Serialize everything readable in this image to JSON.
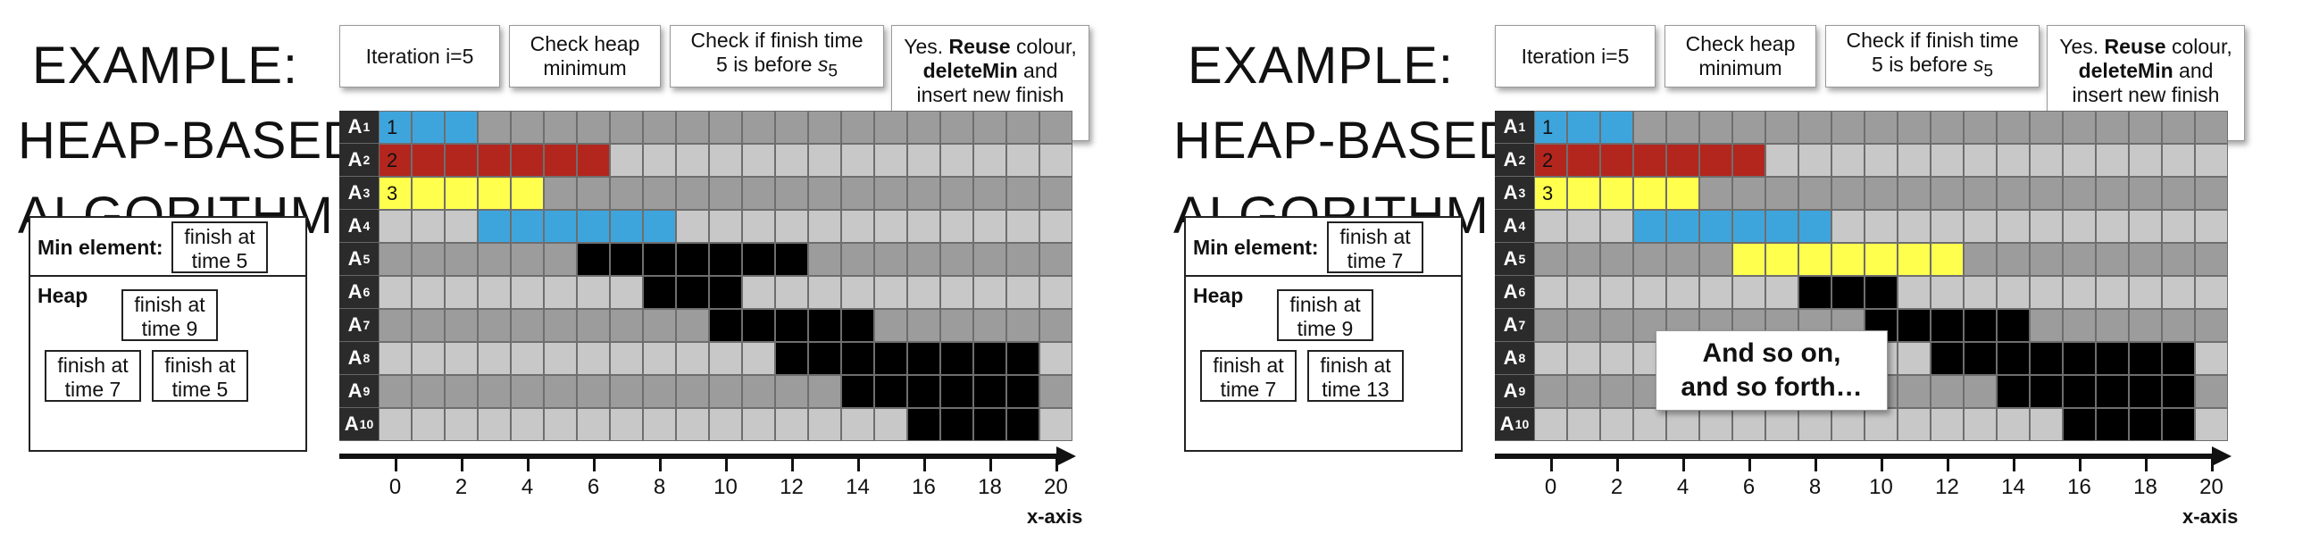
{
  "colors": {
    "blue": "#3ea5dc",
    "red": "#b3261e",
    "yellow": "#ffff4d",
    "black": "#000000",
    "dark_gray": "#9c9c9c",
    "light_gray": "#c8c8c8"
  },
  "x_axis": {
    "label": "x-axis",
    "ticks": [
      "0",
      "2",
      "4",
      "6",
      "8",
      "10",
      "12",
      "14",
      "16",
      "18",
      "20"
    ],
    "columns": 21
  },
  "panels": [
    {
      "title": [
        "EXAMPLE:",
        "HEAP-BASED",
        "ALGORITHM"
      ],
      "min_label": "Min element:",
      "min_value": [
        "finish at",
        "time 5"
      ],
      "heap_label": "Heap",
      "heap_nodes": [
        [
          "finish at",
          "time 9"
        ],
        [
          "finish at",
          "time 7"
        ],
        [
          "finish at",
          "time 5"
        ]
      ],
      "steps": [
        {
          "html": "Iteration i=5"
        },
        {
          "html": "Check heap<br>minimum"
        },
        {
          "html": "Check if finish time<br>5 is before <i>s</i><sub>5</sub>"
        },
        {
          "html": "Yes. <b>Reuse</b> colour,<br><b>deleteMin</b> and<br>insert new finish<br>time into heap!"
        }
      ],
      "rows": [
        {
          "label": "A",
          "sub": "1",
          "start": 0,
          "end": 3,
          "color": "blue",
          "num": "1"
        },
        {
          "label": "A",
          "sub": "2",
          "start": 0,
          "end": 7,
          "color": "red",
          "num": "2"
        },
        {
          "label": "A",
          "sub": "3",
          "start": 0,
          "end": 5,
          "color": "yellow",
          "num": "3"
        },
        {
          "label": "A",
          "sub": "4",
          "start": 3,
          "end": 9,
          "color": "blue",
          "num": ""
        },
        {
          "label": "A",
          "sub": "5",
          "start": 6,
          "end": 13,
          "color": "black",
          "num": ""
        },
        {
          "label": "A",
          "sub": "6",
          "start": 8,
          "end": 11,
          "color": "black",
          "num": ""
        },
        {
          "label": "A",
          "sub": "7",
          "start": 10,
          "end": 15,
          "color": "black",
          "num": ""
        },
        {
          "label": "A",
          "sub": "8",
          "start": 12,
          "end": 20,
          "color": "black",
          "num": ""
        },
        {
          "label": "A",
          "sub": "9",
          "start": 14,
          "end": 20,
          "color": "black",
          "num": ""
        },
        {
          "label": "A",
          "sub": "10",
          "start": 16,
          "end": 20,
          "color": "black",
          "num": ""
        }
      ],
      "callout": null
    },
    {
      "title": [
        "EXAMPLE:",
        "HEAP-BASED",
        "ALGORITHM"
      ],
      "min_label": "Min element:",
      "min_value": [
        "finish at",
        "time 7"
      ],
      "heap_label": "Heap",
      "heap_nodes": [
        [
          "finish at",
          "time 9"
        ],
        [
          "finish at",
          "time 7"
        ],
        [
          "finish at",
          "time 13"
        ]
      ],
      "steps": [
        {
          "html": "Iteration i=5"
        },
        {
          "html": "Check heap<br>minimum"
        },
        {
          "html": "Check if finish time<br>5 is before <i>s</i><sub>5</sub>"
        },
        {
          "html": "Yes. <b>Reuse</b> colour,<br><b>deleteMin</b> and<br>insert new finish<br>time into heap!"
        }
      ],
      "rows": [
        {
          "label": "A",
          "sub": "1",
          "start": 0,
          "end": 3,
          "color": "blue",
          "num": "1"
        },
        {
          "label": "A",
          "sub": "2",
          "start": 0,
          "end": 7,
          "color": "red",
          "num": "2"
        },
        {
          "label": "A",
          "sub": "3",
          "start": 0,
          "end": 5,
          "color": "yellow",
          "num": "3"
        },
        {
          "label": "A",
          "sub": "4",
          "start": 3,
          "end": 9,
          "color": "blue",
          "num": ""
        },
        {
          "label": "A",
          "sub": "5",
          "start": 6,
          "end": 13,
          "color": "yellow",
          "num": ""
        },
        {
          "label": "A",
          "sub": "6",
          "start": 8,
          "end": 11,
          "color": "black",
          "num": ""
        },
        {
          "label": "A",
          "sub": "7",
          "start": 10,
          "end": 15,
          "color": "black",
          "num": ""
        },
        {
          "label": "A",
          "sub": "8",
          "start": 12,
          "end": 20,
          "color": "black",
          "num": ""
        },
        {
          "label": "A",
          "sub": "9",
          "start": 14,
          "end": 20,
          "color": "black",
          "num": ""
        },
        {
          "label": "A",
          "sub": "10",
          "start": 16,
          "end": 20,
          "color": "black",
          "num": ""
        }
      ],
      "callout": [
        "And so on,",
        "and so forth…"
      ]
    }
  ]
}
